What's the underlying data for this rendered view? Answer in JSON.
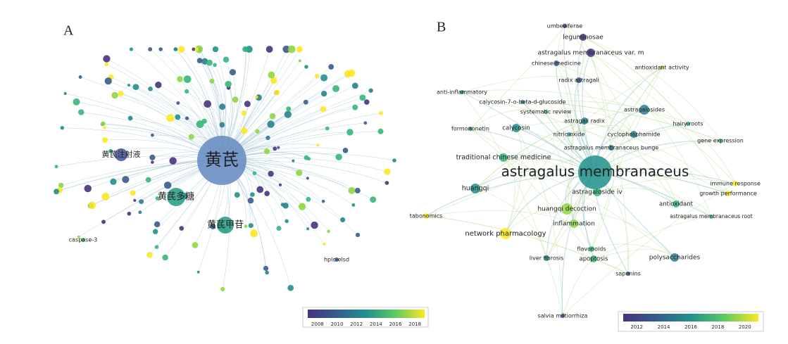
{
  "panel_a": {
    "label": "A",
    "nodes": [
      "黄芪",
      "黄芪多糖",
      "黄芪甲苷",
      "黄芪注射液",
      "caspase-3",
      "hplc-elsd"
    ],
    "colorbar": {
      "ticks": [
        2008,
        2010,
        2012,
        2014,
        2016,
        2018
      ]
    }
  },
  "panel_b": {
    "label": "B",
    "nodes": [
      "umbelliferae",
      "leguminosae",
      "astragalus membranaceus var. m",
      "chinese medicine",
      "antioxidant activity",
      "radix astragali",
      "anti-inflammatory",
      "calycosin-7-o-beta-d-glucoside",
      "systematic review",
      "astragalosides",
      "hairy roots",
      "formononetin",
      "calycosin",
      "astragali radix",
      "nitric oxide",
      "cyclophosphamide",
      "gene expression",
      "astragalus membranaceus bunge",
      "traditional chinese medicine",
      "astragalus membranaceus",
      "immune response",
      "growth performance",
      "huangqi",
      "astragaloside iv",
      "antioxidant",
      "tabonomics",
      "huangqi decoction",
      "astragalus membranaceus root",
      "inflammation",
      "network pharmacology",
      "flavonoids",
      "liver fibrosis",
      "apoptosis",
      "polysaccharides",
      "saponins",
      "salvia miltiorrhiza"
    ],
    "colorbar": {
      "ticks": [
        2012,
        2014,
        2016,
        2018,
        2020
      ]
    }
  }
}
